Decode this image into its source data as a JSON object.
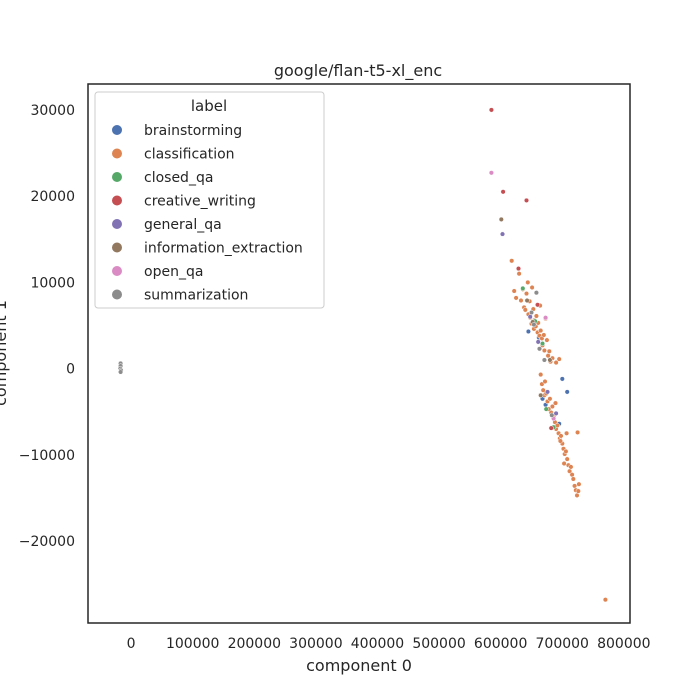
{
  "chart_data": {
    "type": "scatter",
    "title": "google/flan-t5-xl_enc",
    "xlabel": "component 0",
    "ylabel": "component 1",
    "xlim": [
      -70000,
      810000
    ],
    "ylim": [
      -29500,
      33000
    ],
    "xticks": [
      0,
      100000,
      200000,
      300000,
      400000,
      500000,
      600000,
      700000,
      800000
    ],
    "yticks": [
      -20000,
      -10000,
      0,
      10000,
      20000,
      30000
    ],
    "grid": false,
    "legend": {
      "title": "label",
      "placement": "top-left"
    },
    "series": [
      {
        "name": "brainstorming",
        "color": "#4c72b0",
        "points": [
          [
            645000,
            4300
          ],
          [
            662000,
            3600
          ],
          [
            668000,
            -3500
          ],
          [
            700000,
            -1200
          ],
          [
            708000,
            -2700
          ],
          [
            673000,
            -4200
          ],
          [
            695000,
            -6400
          ]
        ]
      },
      {
        "name": "classification",
        "color": "#dd8452",
        "points": [
          [
            618000,
            12500
          ],
          [
            622000,
            9000
          ],
          [
            625000,
            8200
          ],
          [
            630000,
            11000
          ],
          [
            633000,
            7900
          ],
          [
            636000,
            9200
          ],
          [
            638000,
            7100
          ],
          [
            640000,
            6800
          ],
          [
            642000,
            8700
          ],
          [
            644000,
            10000
          ],
          [
            645000,
            6300
          ],
          [
            647000,
            7800
          ],
          [
            648000,
            5900
          ],
          [
            650000,
            5200
          ],
          [
            651000,
            9400
          ],
          [
            653000,
            6900
          ],
          [
            654000,
            4600
          ],
          [
            655000,
            5600
          ],
          [
            657000,
            4900
          ],
          [
            658000,
            6100
          ],
          [
            660000,
            4200
          ],
          [
            661000,
            5300
          ],
          [
            663000,
            3800
          ],
          [
            664000,
            7300
          ],
          [
            665000,
            4400
          ],
          [
            667000,
            3500
          ],
          [
            668000,
            2700
          ],
          [
            670000,
            3900
          ],
          [
            671000,
            2100
          ],
          [
            673000,
            5800
          ],
          [
            675000,
            3300
          ],
          [
            677000,
            1500
          ],
          [
            679000,
            2000
          ],
          [
            681000,
            800
          ],
          [
            684000,
            1200
          ],
          [
            690000,
            700
          ],
          [
            695000,
            1100
          ],
          [
            665000,
            -700
          ],
          [
            667000,
            -1800
          ],
          [
            669000,
            -2500
          ],
          [
            671000,
            -3100
          ],
          [
            672000,
            -1500
          ],
          [
            674000,
            -2900
          ],
          [
            676000,
            -3800
          ],
          [
            678000,
            -4700
          ],
          [
            680000,
            -3500
          ],
          [
            682000,
            -5100
          ],
          [
            684000,
            -4400
          ],
          [
            686000,
            -5600
          ],
          [
            688000,
            -6200
          ],
          [
            690000,
            -7000
          ],
          [
            692000,
            -6600
          ],
          [
            694000,
            -7500
          ],
          [
            696000,
            -8100
          ],
          [
            698000,
            -7800
          ],
          [
            700000,
            -8700
          ],
          [
            702000,
            -9300
          ],
          [
            704000,
            -9900
          ],
          [
            706000,
            -9600
          ],
          [
            708000,
            -10500
          ],
          [
            710000,
            -11200
          ],
          [
            712000,
            -11900
          ],
          [
            714000,
            -11400
          ],
          [
            716000,
            -12300
          ],
          [
            718000,
            -12800
          ],
          [
            720000,
            -13600
          ],
          [
            722000,
            -14100
          ],
          [
            724000,
            -14700
          ],
          [
            726000,
            -14200
          ],
          [
            727000,
            -13400
          ],
          [
            725000,
            -7400
          ],
          [
            707000,
            -7500
          ],
          [
            689000,
            -4000
          ],
          [
            703000,
            -11000
          ],
          [
            697000,
            -8400
          ],
          [
            770000,
            -26800
          ]
        ]
      },
      {
        "name": "closed_qa",
        "color": "#55a868",
        "points": [
          [
            636000,
            9300
          ],
          [
            656000,
            5500
          ],
          [
            668000,
            2900
          ],
          [
            674000,
            -4700
          ],
          [
            686000,
            -6800
          ]
        ]
      },
      {
        "name": "creative_writing",
        "color": "#c44e52",
        "points": [
          [
            585000,
            30000
          ],
          [
            604000,
            20500
          ],
          [
            642000,
            19500
          ],
          [
            629000,
            11600
          ],
          [
            660000,
            7400
          ],
          [
            682000,
            -6900
          ]
        ]
      },
      {
        "name": "general_qa",
        "color": "#8172b3",
        "points": [
          [
            603000,
            15600
          ],
          [
            648000,
            6000
          ],
          [
            661000,
            3100
          ],
          [
            676000,
            -2700
          ],
          [
            690000,
            -5200
          ]
        ]
      },
      {
        "name": "information_extraction",
        "color": "#937860",
        "points": [
          [
            601000,
            17300
          ],
          [
            643000,
            7900
          ],
          [
            652000,
            5400
          ],
          [
            665000,
            -3100
          ],
          [
            680000,
            1000
          ]
        ]
      },
      {
        "name": "open_qa",
        "color": "#da8bc3",
        "points": [
          [
            585000,
            22700
          ],
          [
            673000,
            5900
          ],
          [
            686000,
            -5800
          ]
        ]
      },
      {
        "name": "summarization",
        "color": "#8c8c8c",
        "points": [
          [
            -17000,
            600
          ],
          [
            -17000,
            300
          ],
          [
            -17500,
            0
          ],
          [
            -16500,
            -200
          ],
          [
            -17000,
            -400
          ],
          [
            650000,
            6500
          ],
          [
            654000,
            5100
          ],
          [
            663000,
            2300
          ],
          [
            671000,
            1000
          ],
          [
            683000,
            -5400
          ],
          [
            658000,
            8800
          ]
        ]
      }
    ]
  }
}
